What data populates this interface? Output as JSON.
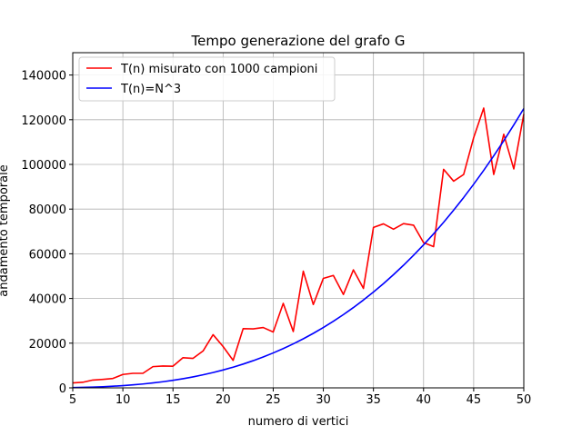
{
  "chart_data": {
    "type": "line",
    "title": "Tempo generazione del grafo G",
    "xlabel": "numero di vertici",
    "ylabel": "andamento temporale",
    "xlim": [
      5,
      50
    ],
    "ylim": [
      0,
      150000
    ],
    "xticks": [
      5,
      10,
      15,
      20,
      25,
      30,
      35,
      40,
      45,
      50
    ],
    "yticks": [
      0,
      20000,
      40000,
      60000,
      80000,
      100000,
      120000,
      140000
    ],
    "grid": true,
    "legend_position": "top-left",
    "series": [
      {
        "name": "T(n) misurato con 1000 campioni",
        "color": "#ff0000",
        "x": [
          5,
          6,
          7,
          8,
          9,
          10,
          11,
          12,
          13,
          14,
          15,
          16,
          17,
          18,
          19,
          20,
          21,
          22,
          23,
          24,
          25,
          26,
          27,
          28,
          29,
          30,
          31,
          32,
          33,
          34,
          35,
          36,
          37,
          38,
          39,
          40,
          41,
          42,
          43,
          44,
          45,
          46,
          47,
          48,
          49,
          50
        ],
        "values": [
          2200,
          2500,
          3500,
          3800,
          4200,
          6000,
          6500,
          6500,
          9500,
          9800,
          9700,
          13500,
          13200,
          16500,
          23800,
          18500,
          12300,
          26500,
          26400,
          27000,
          25000,
          37800,
          25200,
          52200,
          37300,
          49000,
          50300,
          41800,
          52800,
          44500,
          71800,
          73400,
          71000,
          73500,
          72800,
          65000,
          63200,
          97800,
          92500,
          95500,
          112000,
          125200,
          95500,
          113500,
          98000,
          122500
        ]
      },
      {
        "name": "T(n)=N^3",
        "color": "#0000ff",
        "x": [
          5,
          6,
          7,
          8,
          9,
          10,
          11,
          12,
          13,
          14,
          15,
          16,
          17,
          18,
          19,
          20,
          21,
          22,
          23,
          24,
          25,
          26,
          27,
          28,
          29,
          30,
          31,
          32,
          33,
          34,
          35,
          36,
          37,
          38,
          39,
          40,
          41,
          42,
          43,
          44,
          45,
          46,
          47,
          48,
          49,
          50
        ],
        "values": [
          125,
          216,
          343,
          512,
          729,
          1000,
          1331,
          1728,
          2197,
          2744,
          3375,
          4096,
          4913,
          5832,
          6859,
          8000,
          9261,
          10648,
          12167,
          13824,
          15625,
          17576,
          19683,
          21952,
          24389,
          27000,
          29791,
          32768,
          35937,
          39304,
          42875,
          46656,
          50653,
          54872,
          59319,
          64000,
          68921,
          74088,
          79507,
          85184,
          91125,
          97336,
          103823,
          110592,
          117649,
          125000
        ]
      }
    ]
  }
}
